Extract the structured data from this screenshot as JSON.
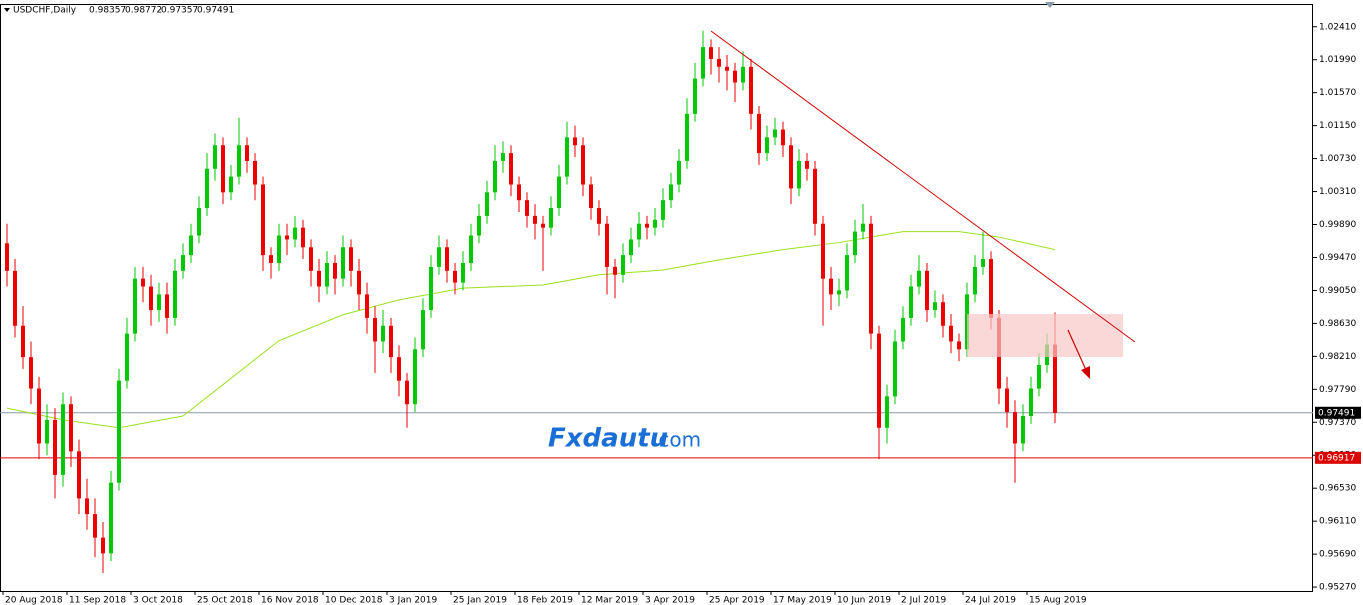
{
  "chart_data": {
    "type": "candlestick",
    "symbol": "USDCHF,Daily",
    "header_values": [
      0.98357,
      0.98772,
      0.97357,
      0.97491
    ],
    "watermark": [
      "Fxdautu",
      ".com"
    ],
    "up_color": "#00c800",
    "down_color": "#ee0000",
    "ma_color": "#9be01e",
    "ylim": [
      0.9522,
      1.027
    ],
    "yticks": [
      {
        "value": 1.0241,
        "label": "1.02410"
      },
      {
        "value": 1.0199,
        "label": "1.01990"
      },
      {
        "value": 1.0157,
        "label": "1.01570"
      },
      {
        "value": 1.0115,
        "label": "1.01150"
      },
      {
        "value": 1.0073,
        "label": "1.00730"
      },
      {
        "value": 1.0031,
        "label": "1.00310"
      },
      {
        "value": 0.9989,
        "label": "0.99890"
      },
      {
        "value": 0.9947,
        "label": "0.99470"
      },
      {
        "value": 0.9905,
        "label": "0.99050"
      },
      {
        "value": 0.9863,
        "label": "0.98630"
      },
      {
        "value": 0.9821,
        "label": "0.98210"
      },
      {
        "value": 0.9779,
        "label": "0.97790"
      },
      {
        "value": 0.9737,
        "label": "0.97370"
      },
      {
        "value": 0.9695,
        "label": "0.96950"
      },
      {
        "value": 0.9653,
        "label": "0.96530"
      },
      {
        "value": 0.9611,
        "label": "0.96110"
      },
      {
        "value": 0.9569,
        "label": "0.95690"
      },
      {
        "value": 0.9527,
        "label": "0.95270"
      }
    ],
    "price_lines": [
      {
        "value": 0.97491,
        "color": "#8a9aa8",
        "label_bg": "#000000"
      },
      {
        "value": 0.96917,
        "color": "#dd0000",
        "label_bg": "#dd0000"
      }
    ],
    "xticks": [
      {
        "value": 0,
        "label": "20 Aug 2018"
      },
      {
        "value": 8,
        "label": "11 Sep 2018"
      },
      {
        "value": 16,
        "label": "3 Oct 2018"
      },
      {
        "value": 24,
        "label": "25 Oct 2018"
      },
      {
        "value": 32,
        "label": "16 Nov 2018"
      },
      {
        "value": 40,
        "label": "10 Dec 2018"
      },
      {
        "value": 48,
        "label": "3 Jan 2019"
      },
      {
        "value": 56,
        "label": "25 Jan 2019"
      },
      {
        "value": 64,
        "label": "18 Feb 2019"
      },
      {
        "value": 72,
        "label": "12 Mar 2019"
      },
      {
        "value": 80,
        "label": "3 Apr 2019"
      },
      {
        "value": 88,
        "label": "25 Apr 2019"
      },
      {
        "value": 96,
        "label": "17 May 2019"
      },
      {
        "value": 104,
        "label": "10 Jun 2019"
      },
      {
        "value": 112,
        "label": "2 Jul 2019"
      },
      {
        "value": 120,
        "label": "24 Jul 2019"
      },
      {
        "value": 128,
        "label": "15 Aug 2019"
      }
    ],
    "moving_average": {
      "x": [
        0,
        7,
        14,
        22,
        27,
        34,
        42,
        49,
        57,
        67,
        74,
        82,
        89,
        97,
        104,
        112,
        119,
        124,
        131
      ],
      "values": [
        0.9755,
        0.974,
        0.973,
        0.9745,
        0.9785,
        0.9841,
        0.9874,
        0.9893,
        0.9908,
        0.9912,
        0.9925,
        0.9931,
        0.9944,
        0.9957,
        0.9966,
        0.998,
        0.998,
        0.9973,
        0.9957
      ]
    },
    "ohlc": [
      [
        0.9965,
        0.999,
        0.991,
        0.993
      ],
      [
        0.993,
        0.9945,
        0.9845,
        0.986
      ],
      [
        0.986,
        0.9885,
        0.9805,
        0.982
      ],
      [
        0.982,
        0.984,
        0.976,
        0.978
      ],
      [
        0.978,
        0.9795,
        0.969,
        0.971
      ],
      [
        0.971,
        0.976,
        0.9695,
        0.974
      ],
      [
        0.974,
        0.9755,
        0.964,
        0.967
      ],
      [
        0.967,
        0.9775,
        0.9655,
        0.976
      ],
      [
        0.976,
        0.977,
        0.968,
        0.97
      ],
      [
        0.97,
        0.9715,
        0.962,
        0.964
      ],
      [
        0.964,
        0.9665,
        0.96,
        0.962
      ],
      [
        0.962,
        0.964,
        0.9565,
        0.959
      ],
      [
        0.959,
        0.961,
        0.9545,
        0.957
      ],
      [
        0.957,
        0.9675,
        0.956,
        0.966
      ],
      [
        0.966,
        0.9805,
        0.965,
        0.979
      ],
      [
        0.979,
        0.987,
        0.978,
        0.985
      ],
      [
        0.985,
        0.9935,
        0.984,
        0.992
      ],
      [
        0.992,
        0.9935,
        0.989,
        0.991
      ],
      [
        0.991,
        0.9925,
        0.986,
        0.988
      ],
      [
        0.988,
        0.9915,
        0.9865,
        0.99
      ],
      [
        0.99,
        0.9915,
        0.985,
        0.987
      ],
      [
        0.987,
        0.9945,
        0.986,
        0.993
      ],
      [
        0.993,
        0.9965,
        0.992,
        0.995
      ],
      [
        0.995,
        0.999,
        0.994,
        0.9975
      ],
      [
        0.9975,
        1.0025,
        0.9965,
        1.001
      ],
      [
        1.001,
        1.008,
        1.0,
        1.006
      ],
      [
        1.006,
        1.0105,
        1.0045,
        1.009
      ],
      [
        1.009,
        1.01,
        1.0015,
        1.003
      ],
      [
        1.003,
        1.0065,
        1.002,
        1.005
      ],
      [
        1.005,
        1.0125,
        1.004,
        1.009
      ],
      [
        1.009,
        1.01,
        1.0055,
        1.007
      ],
      [
        1.007,
        1.008,
        1.002,
        1.004
      ],
      [
        1.004,
        1.005,
        0.993,
        0.995
      ],
      [
        0.995,
        0.996,
        0.992,
        0.994
      ],
      [
        0.994,
        0.999,
        0.993,
        0.9975
      ],
      [
        0.9975,
        0.999,
        0.995,
        0.997
      ],
      [
        0.997,
        1.0,
        0.996,
        0.9985
      ],
      [
        0.9985,
        0.9995,
        0.9945,
        0.996
      ],
      [
        0.996,
        0.997,
        0.991,
        0.993
      ],
      [
        0.993,
        0.9945,
        0.989,
        0.991
      ],
      [
        0.991,
        0.9955,
        0.99,
        0.994
      ],
      [
        0.994,
        0.995,
        0.99,
        0.992
      ],
      [
        0.992,
        0.9975,
        0.991,
        0.996
      ],
      [
        0.996,
        0.997,
        0.991,
        0.993
      ],
      [
        0.993,
        0.9945,
        0.988,
        0.99
      ],
      [
        0.99,
        0.9915,
        0.985,
        0.987
      ],
      [
        0.987,
        0.9885,
        0.98,
        0.984
      ],
      [
        0.984,
        0.988,
        0.9825,
        0.986
      ],
      [
        0.986,
        0.987,
        0.98,
        0.982
      ],
      [
        0.982,
        0.9835,
        0.977,
        0.979
      ],
      [
        0.979,
        0.98,
        0.973,
        0.976
      ],
      [
        0.976,
        0.9845,
        0.975,
        0.983
      ],
      [
        0.983,
        0.9895,
        0.982,
        0.988
      ],
      [
        0.988,
        0.995,
        0.987,
        0.9935
      ],
      [
        0.9935,
        0.9975,
        0.9925,
        0.996
      ],
      [
        0.996,
        0.997,
        0.9915,
        0.993
      ],
      [
        0.993,
        0.994,
        0.99,
        0.9915
      ],
      [
        0.9915,
        0.9955,
        0.9905,
        0.994
      ],
      [
        0.994,
        0.999,
        0.993,
        0.9975
      ],
      [
        0.9975,
        1.0015,
        0.9965,
        1.0
      ],
      [
        1.0,
        1.0045,
        0.999,
        1.003
      ],
      [
        1.003,
        1.009,
        1.002,
        1.007
      ],
      [
        1.007,
        1.0095,
        1.0055,
        1.008
      ],
      [
        1.008,
        1.009,
        1.0025,
        1.004
      ],
      [
        1.004,
        1.005,
        1.0005,
        1.002
      ],
      [
        1.002,
        1.003,
        0.9985,
        1.0
      ],
      [
        1.0,
        1.0015,
        0.997,
        0.999
      ],
      [
        0.999,
        1.0,
        0.993,
        0.9985
      ],
      [
        0.9985,
        1.0025,
        0.9975,
        1.001
      ],
      [
        1.001,
        1.0065,
        1.0,
        1.005
      ],
      [
        1.005,
        1.012,
        1.004,
        1.01
      ],
      [
        1.01,
        1.0115,
        1.0075,
        1.009
      ],
      [
        1.009,
        1.01,
        1.0025,
        1.004
      ],
      [
        1.004,
        1.005,
        0.9995,
        1.001
      ],
      [
        1.001,
        1.002,
        0.9975,
        0.999
      ],
      [
        0.999,
        1.0,
        0.99,
        0.9935
      ],
      [
        0.9935,
        0.9945,
        0.9895,
        0.9925
      ],
      [
        0.9925,
        0.9965,
        0.9915,
        0.995
      ],
      [
        0.995,
        0.9985,
        0.994,
        0.997
      ],
      [
        0.997,
        1.0005,
        0.996,
        0.999
      ],
      [
        0.999,
        1.0,
        0.997,
        0.9985
      ],
      [
        0.9985,
        1.001,
        0.9975,
        0.9995
      ],
      [
        0.9995,
        1.0035,
        0.9985,
        1.002
      ],
      [
        1.002,
        1.0055,
        1.001,
        1.004
      ],
      [
        1.004,
        1.0085,
        1.003,
        1.007
      ],
      [
        1.007,
        1.015,
        1.006,
        1.013
      ],
      [
        1.013,
        1.0195,
        1.012,
        1.0175
      ],
      [
        1.0175,
        1.0236,
        1.0165,
        1.0215
      ],
      [
        1.0215,
        1.0225,
        1.018,
        1.02
      ],
      [
        1.02,
        1.0215,
        1.017,
        1.019
      ],
      [
        1.019,
        1.0205,
        1.016,
        1.0185
      ],
      [
        1.0185,
        1.0195,
        1.0145,
        1.017
      ],
      [
        1.017,
        1.021,
        1.016,
        1.019
      ],
      [
        1.019,
        1.02,
        1.011,
        1.013
      ],
      [
        1.013,
        1.014,
        1.0065,
        1.008
      ],
      [
        1.008,
        1.0115,
        1.007,
        1.01
      ],
      [
        1.01,
        1.0125,
        1.009,
        1.011
      ],
      [
        1.011,
        1.012,
        1.0075,
        1.009
      ],
      [
        1.009,
        1.01,
        1.0015,
        1.0035
      ],
      [
        1.0035,
        1.0085,
        1.0025,
        1.007
      ],
      [
        1.007,
        1.008,
        1.0045,
        1.006
      ],
      [
        1.006,
        1.007,
        0.9975,
        0.999
      ],
      [
        0.999,
        1.0,
        0.986,
        0.992
      ],
      [
        0.992,
        0.9935,
        0.988,
        0.99
      ],
      [
        0.99,
        0.992,
        0.9885,
        0.9905
      ],
      [
        0.9905,
        0.9965,
        0.9895,
        0.995
      ],
      [
        0.995,
        0.9995,
        0.994,
        0.998
      ],
      [
        0.998,
        1.0015,
        0.997,
        0.999
      ],
      [
        0.999,
        1.0,
        0.983,
        0.985
      ],
      [
        0.985,
        0.986,
        0.969,
        0.973
      ],
      [
        0.973,
        0.9785,
        0.971,
        0.977
      ],
      [
        0.977,
        0.9855,
        0.976,
        0.984
      ],
      [
        0.984,
        0.9885,
        0.983,
        0.987
      ],
      [
        0.987,
        0.9925,
        0.986,
        0.991
      ],
      [
        0.991,
        0.995,
        0.99,
        0.993
      ],
      [
        0.993,
        0.994,
        0.9865,
        0.988
      ],
      [
        0.988,
        0.9905,
        0.987,
        0.989
      ],
      [
        0.989,
        0.99,
        0.9845,
        0.986
      ],
      [
        0.986,
        0.9875,
        0.9825,
        0.984
      ],
      [
        0.984,
        0.985,
        0.9815,
        0.983
      ],
      [
        0.983,
        0.9915,
        0.982,
        0.99
      ],
      [
        0.99,
        0.995,
        0.989,
        0.9935
      ],
      [
        0.9935,
        0.998,
        0.9925,
        0.9945
      ],
      [
        0.9945,
        0.9955,
        0.9855,
        0.987
      ],
      [
        0.987,
        0.988,
        0.976,
        0.978
      ],
      [
        0.978,
        0.9795,
        0.973,
        0.975
      ],
      [
        0.975,
        0.9765,
        0.966,
        0.971
      ],
      [
        0.971,
        0.976,
        0.97,
        0.9745
      ],
      [
        0.9745,
        0.9795,
        0.9735,
        0.978
      ],
      [
        0.978,
        0.9825,
        0.977,
        0.981
      ],
      [
        0.981,
        0.985,
        0.98,
        0.9836
      ],
      [
        0.9836,
        0.9877,
        0.9736,
        0.9749
      ]
    ]
  }
}
